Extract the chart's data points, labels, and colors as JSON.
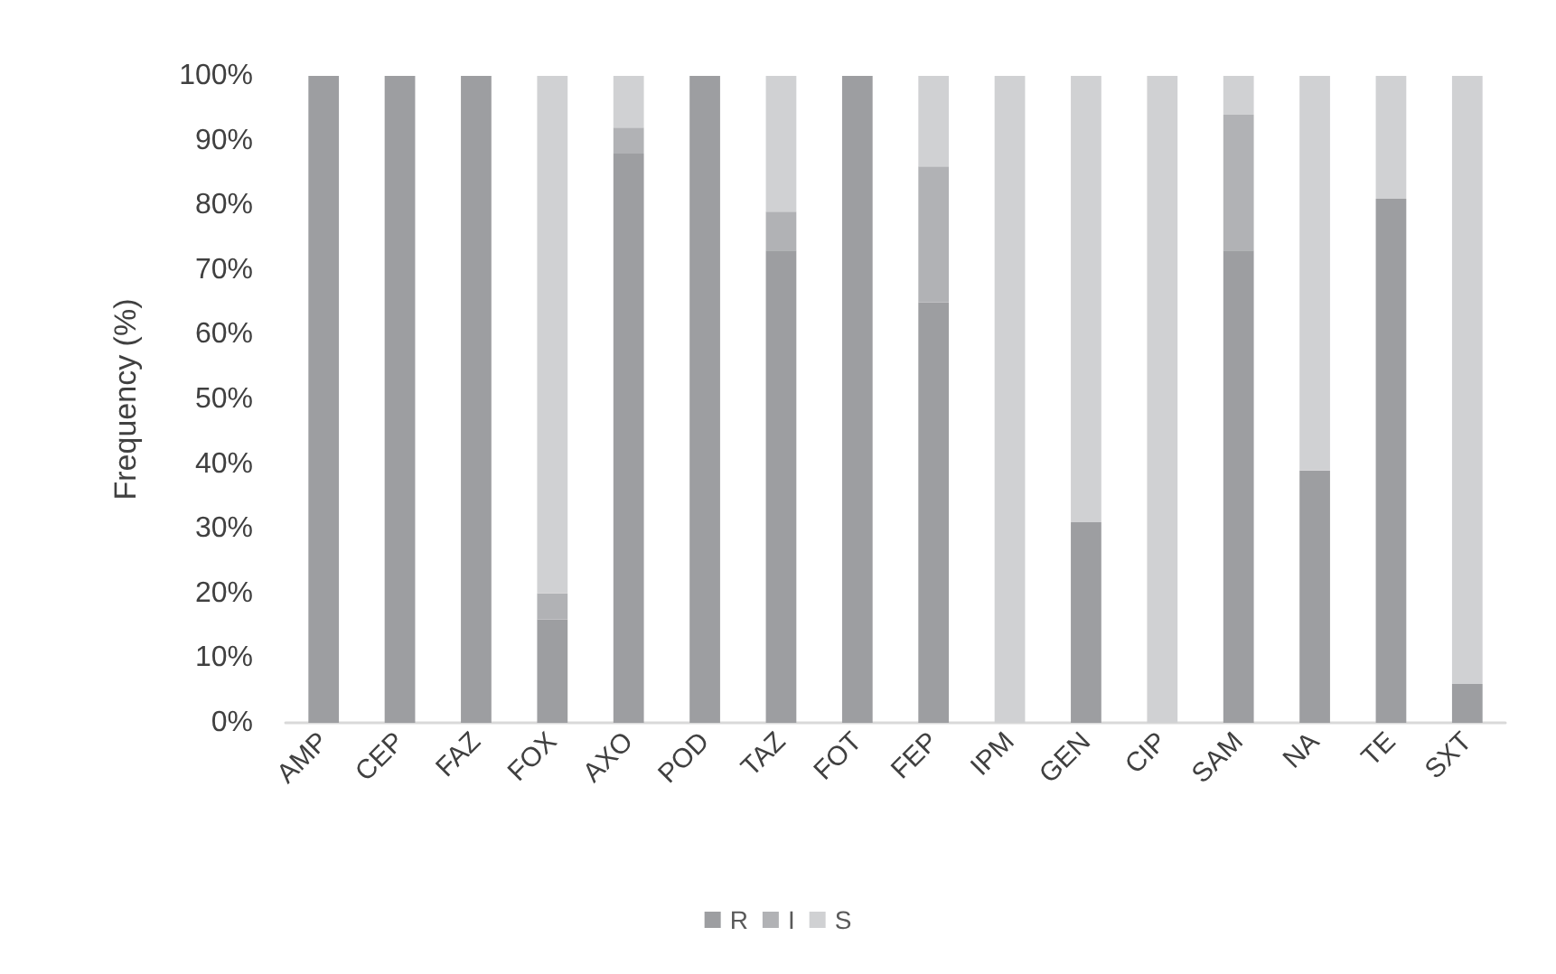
{
  "chart_data": {
    "type": "bar",
    "stacked": true,
    "ylabel": "Frequency (%)",
    "categories": [
      "AMP",
      "CEP",
      "FAZ",
      "FOX",
      "AXO",
      "POD",
      "TAZ",
      "FOT",
      "FEP",
      "IPM",
      "GEN",
      "CIP",
      "SAM",
      "NA",
      "TE",
      "SXT"
    ],
    "series": [
      {
        "name": "R",
        "color": "#9d9ea1",
        "values": [
          100,
          100,
          100,
          16,
          88,
          100,
          73,
          100,
          65,
          0,
          31,
          0,
          73,
          39,
          81,
          6
        ]
      },
      {
        "name": "I",
        "color": "#b1b2b5",
        "values": [
          0,
          0,
          0,
          4,
          4,
          0,
          6,
          0,
          21,
          0,
          0,
          0,
          21,
          0,
          0,
          0
        ]
      },
      {
        "name": "S",
        "color": "#d0d1d3",
        "values": [
          0,
          0,
          0,
          80,
          8,
          0,
          21,
          0,
          14,
          100,
          69,
          100,
          6,
          61,
          19,
          94
        ]
      }
    ],
    "ylim": [
      0,
      100
    ],
    "yticks": [
      {
        "value": 0,
        "label": "0%"
      },
      {
        "value": 10,
        "label": "10%"
      },
      {
        "value": 20,
        "label": "20%"
      },
      {
        "value": 30,
        "label": "30%"
      },
      {
        "value": 40,
        "label": "40%"
      },
      {
        "value": 50,
        "label": "50%"
      },
      {
        "value": 60,
        "label": "60%"
      },
      {
        "value": 70,
        "label": "70%"
      },
      {
        "value": 80,
        "label": "80%"
      },
      {
        "value": 90,
        "label": "90%"
      },
      {
        "value": 100,
        "label": "100%"
      }
    ],
    "grid": false,
    "legend": "bottom"
  }
}
